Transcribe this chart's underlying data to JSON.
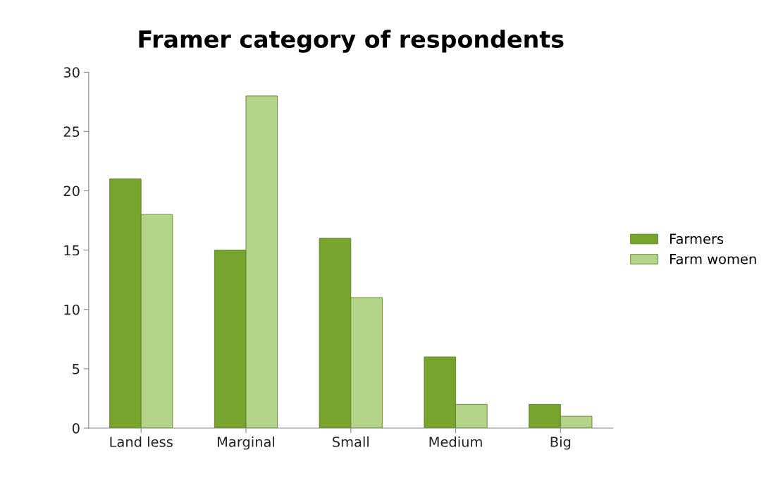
{
  "chart_data": {
    "type": "bar",
    "title": "Framer category of respondents",
    "categories": [
      "Land less",
      "Marginal",
      "Small",
      "Medium",
      "Big"
    ],
    "series": [
      {
        "name": "Farmers",
        "color": "#76a42c",
        "values": [
          21,
          15,
          16,
          6,
          2
        ]
      },
      {
        "name": "Farm women",
        "color": "#b4d48a",
        "values": [
          18,
          28,
          11,
          2,
          1
        ]
      }
    ],
    "ylim": [
      0,
      30
    ],
    "yticks": [
      0,
      5,
      10,
      15,
      20,
      25,
      30
    ],
    "grid": false,
    "legend": "right"
  }
}
